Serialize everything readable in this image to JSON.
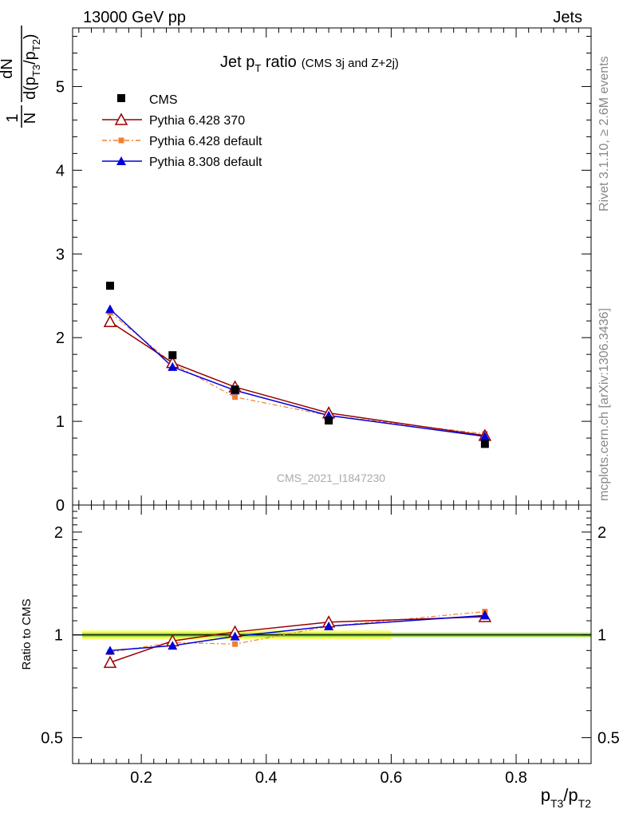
{
  "header": {
    "energy_label": "13000 GeV pp",
    "category_label": "Jets"
  },
  "side_labels": {
    "rivet": "Rivet 3.1.10, ≥ 2.6M events",
    "mcplots": "mcplots.cern.ch [arXiv:1306.3436]"
  },
  "watermark": "CMS_2021_I1847230",
  "colors": {
    "cms": "#000000",
    "py6_370": "#990000",
    "py6_default": "#f07f30",
    "py8_default": "#0000dd",
    "band_outer": "#ffff66",
    "band_inner": "#99dd44"
  },
  "chart_data": [
    {
      "type": "line",
      "panel": "main",
      "title": {
        "main": "Jet p",
        "sub": "T",
        "rest": " ratio",
        "small": "(CMS 3j and Z+2j)"
      },
      "ylabel": {
        "one": "1",
        "N": "N",
        "dN": "dN",
        "d": "d(p",
        "t3": "T3",
        "slash": "/p",
        "t2": "T2",
        "close": ")"
      },
      "xlim": [
        0.09,
        0.92
      ],
      "ylim": [
        0,
        5.7
      ],
      "yticks": [
        {
          "v": 0,
          "label": "0"
        },
        {
          "v": 1,
          "label": "1"
        },
        {
          "v": 2,
          "label": "2"
        },
        {
          "v": 3,
          "label": "3"
        },
        {
          "v": 4,
          "label": "4"
        },
        {
          "v": 5,
          "label": "5"
        }
      ],
      "legend": [
        {
          "label": "CMS",
          "series": "cms"
        },
        {
          "label": "Pythia 6.428 370",
          "series": "py6_370"
        },
        {
          "label": "Pythia 6.428 default",
          "series": "py6_default"
        },
        {
          "label": "Pythia 8.308 default",
          "series": "py8_default"
        }
      ],
      "x": [
        0.15,
        0.25,
        0.35,
        0.5,
        0.75
      ],
      "series": [
        {
          "key": "cms",
          "name": "CMS",
          "values": [
            2.62,
            1.79,
            1.38,
            1.01,
            0.73
          ]
        },
        {
          "key": "py6_370",
          "name": "Pythia 6.428 370",
          "values": [
            2.19,
            1.7,
            1.41,
            1.1,
            0.83
          ]
        },
        {
          "key": "py6_default",
          "name": "Pythia 6.428 default",
          "values": [
            2.3,
            1.69,
            1.29,
            1.07,
            0.85
          ]
        },
        {
          "key": "py8_default",
          "name": "Pythia 8.308 default",
          "values": [
            2.34,
            1.65,
            1.37,
            1.07,
            0.82
          ]
        }
      ]
    },
    {
      "type": "line",
      "panel": "ratio",
      "ylabel": "Ratio to CMS",
      "xlabel": {
        "p": "p",
        "t3": "T3",
        "slash": "/p",
        "t2": "T2"
      },
      "xlim": [
        0.09,
        0.92
      ],
      "ylim": [
        0.42,
        2.4
      ],
      "log_y": true,
      "yticks": [
        {
          "v": 0.5,
          "label": "0.5"
        },
        {
          "v": 1,
          "label": "1"
        },
        {
          "v": 2,
          "label": "2"
        }
      ],
      "xticks": [
        {
          "v": 0.2,
          "label": "0.2"
        },
        {
          "v": 0.4,
          "label": "0.4"
        },
        {
          "v": 0.6,
          "label": "0.6"
        },
        {
          "v": 0.8,
          "label": "0.8"
        }
      ],
      "band_inner": [
        0.985,
        1.015
      ],
      "band_outer": [
        0.97,
        1.03
      ],
      "x": [
        0.15,
        0.25,
        0.35,
        0.5,
        0.75
      ],
      "series": [
        {
          "key": "py6_370",
          "name": "Pythia 6.428 370",
          "values": [
            0.83,
            0.96,
            1.02,
            1.09,
            1.13
          ]
        },
        {
          "key": "py6_default",
          "name": "Pythia 6.428 default",
          "values": [
            0.89,
            0.95,
            0.94,
            1.06,
            1.17
          ]
        },
        {
          "key": "py8_default",
          "name": "Pythia 8.308 default",
          "values": [
            0.9,
            0.93,
            0.99,
            1.06,
            1.14
          ]
        }
      ]
    }
  ]
}
